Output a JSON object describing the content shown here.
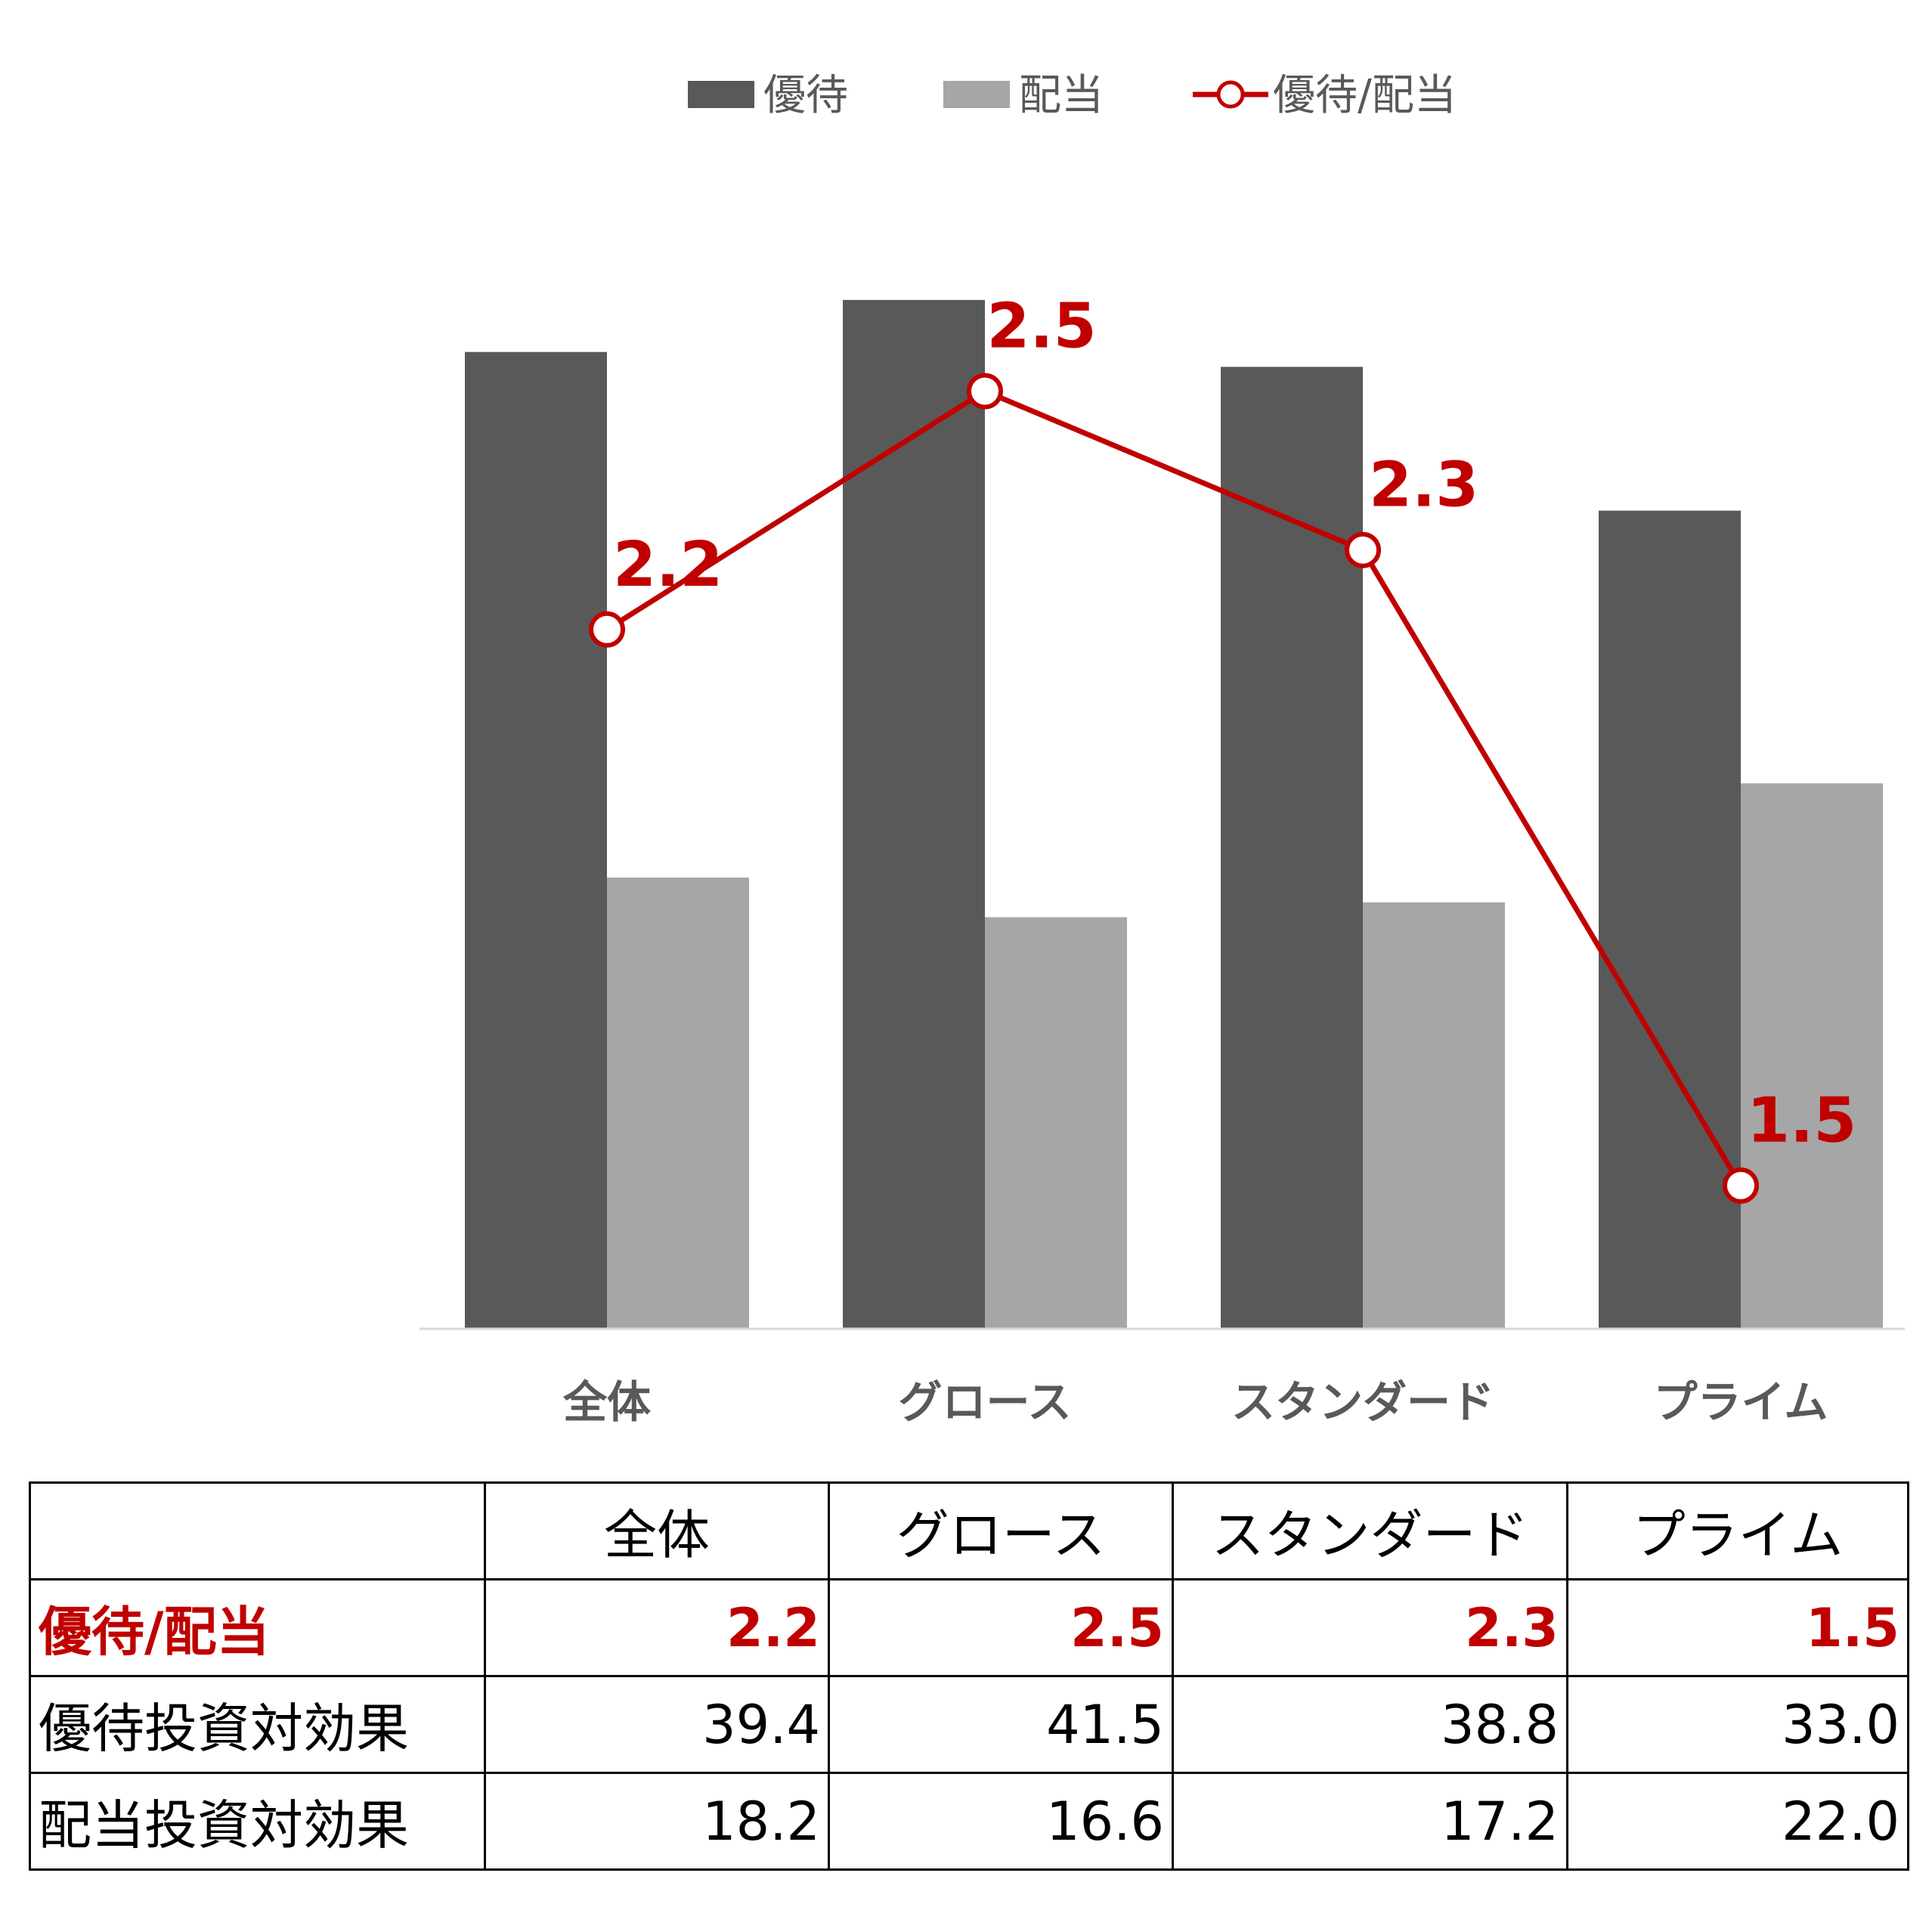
{
  "chart_data": {
    "type": "bar",
    "categories": [
      "全体",
      "グロース",
      "スタンダード",
      "プライム"
    ],
    "series": [
      {
        "name": "優待",
        "type": "bar",
        "values": [
          39.4,
          41.5,
          38.8,
          33.0
        ],
        "color": "#595959"
      },
      {
        "name": "配当",
        "type": "bar",
        "values": [
          18.2,
          16.6,
          17.2,
          22.0
        ],
        "color": "#a6a6a6"
      },
      {
        "name": "優待/配当",
        "type": "line",
        "values": [
          2.2,
          2.5,
          2.3,
          1.5
        ],
        "color": "#c00000"
      }
    ],
    "ratio_labels": [
      "2.2",
      "2.5",
      "2.3",
      "1.5"
    ],
    "title": "",
    "xlabel": "",
    "ylabel": "",
    "legend_position": "top",
    "grid": false
  },
  "table": {
    "header": [
      "",
      "全体",
      "グロース",
      "スタンダード",
      "プライム"
    ],
    "rows": [
      {
        "label": "優待/配当",
        "values": [
          "2.2",
          "2.5",
          "2.3",
          "1.5"
        ]
      },
      {
        "label": "優待投資対効果",
        "values": [
          "39.4",
          "41.5",
          "38.8",
          "33.0"
        ]
      },
      {
        "label": "配当投資対効果",
        "values": [
          "18.2",
          "16.6",
          "17.2",
          "22.0"
        ]
      }
    ]
  }
}
